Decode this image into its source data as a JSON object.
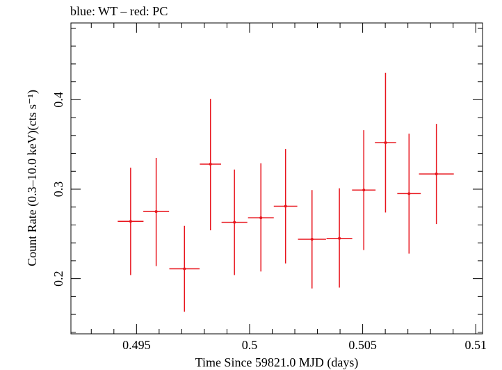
{
  "chart_data": {
    "type": "scatter",
    "title": "blue: WT – red: PC",
    "xlabel": "Time Since 59821.0 MJD (days)",
    "ylabel": "Count Rate (0.3–10.0 keV)(cts s⁻¹)",
    "xlim": [
      0.4921,
      0.5103
    ],
    "ylim": [
      0.1383,
      0.4858
    ],
    "x_ticks": [
      0.495,
      0.5,
      0.505,
      0.51
    ],
    "x_tick_labels": [
      "0.495",
      "0.5",
      "0.505",
      "0.51"
    ],
    "y_ticks": [
      0.2,
      0.3,
      0.4
    ],
    "y_tick_labels": [
      "0.2",
      "0.3",
      "0.4"
    ],
    "grid": false,
    "series": [
      {
        "name": "PC",
        "color": "#e8141c",
        "points": [
          {
            "x": 0.49474,
            "xerr": 0.00057,
            "y": 0.264,
            "yerr_low": 0.06,
            "yerr_high": 0.06
          },
          {
            "x": 0.49587,
            "xerr": 0.00057,
            "y": 0.275,
            "yerr_low": 0.061,
            "yerr_high": 0.06
          },
          {
            "x": 0.49712,
            "xerr": 0.00067,
            "y": 0.211,
            "yerr_low": 0.048,
            "yerr_high": 0.048
          },
          {
            "x": 0.49827,
            "xerr": 0.00047,
            "y": 0.328,
            "yerr_low": 0.074,
            "yerr_high": 0.073
          },
          {
            "x": 0.49933,
            "xerr": 0.00057,
            "y": 0.263,
            "yerr_low": 0.059,
            "yerr_high": 0.059
          },
          {
            "x": 0.5005,
            "xerr": 0.00057,
            "y": 0.268,
            "yerr_low": 0.06,
            "yerr_high": 0.061
          },
          {
            "x": 0.50159,
            "xerr": 0.00052,
            "y": 0.281,
            "yerr_low": 0.064,
            "yerr_high": 0.064
          },
          {
            "x": 0.50276,
            "xerr": 0.00062,
            "y": 0.244,
            "yerr_low": 0.055,
            "yerr_high": 0.055
          },
          {
            "x": 0.50397,
            "xerr": 0.00057,
            "y": 0.245,
            "yerr_low": 0.055,
            "yerr_high": 0.056
          },
          {
            "x": 0.50505,
            "xerr": 0.00052,
            "y": 0.299,
            "yerr_low": 0.067,
            "yerr_high": 0.067
          },
          {
            "x": 0.50601,
            "xerr": 0.00047,
            "y": 0.352,
            "yerr_low": 0.078,
            "yerr_high": 0.078
          },
          {
            "x": 0.50705,
            "xerr": 0.00052,
            "y": 0.295,
            "yerr_low": 0.067,
            "yerr_high": 0.067
          },
          {
            "x": 0.50826,
            "xerr": 0.00077,
            "y": 0.317,
            "yerr_low": 0.056,
            "yerr_high": 0.056
          }
        ]
      }
    ]
  }
}
